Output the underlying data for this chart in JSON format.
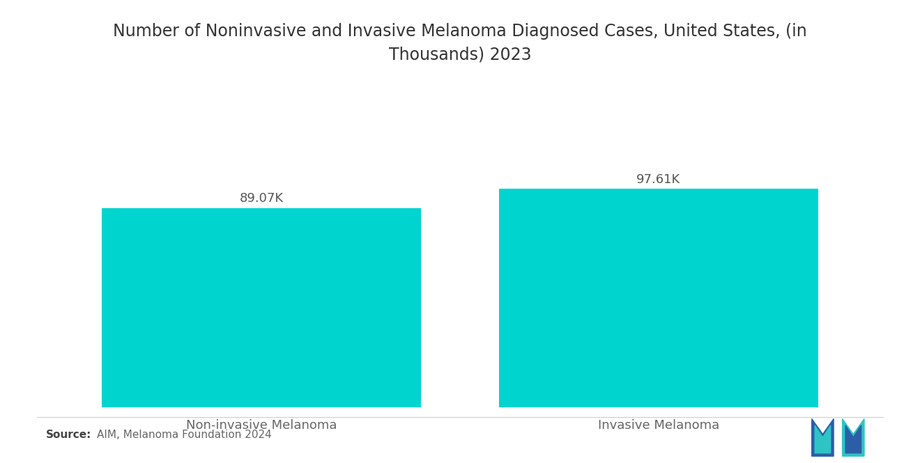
{
  "title": "Number of Noninvasive and Invasive Melanoma Diagnosed Cases, United States, (in\nThousands) 2023",
  "categories": [
    "Non-invasive Melanoma",
    "Invasive Melanoma"
  ],
  "values": [
    89.07,
    97.61
  ],
  "labels": [
    "89.07K",
    "97.61K"
  ],
  "bar_color": "#00D4CF",
  "background_color": "#ffffff",
  "title_fontsize": 17,
  "label_fontsize": 13,
  "category_fontsize": 13,
  "source_bold": "Source:",
  "source_normal": "  AIM, Melanoma Foundation 2024",
  "bar_positions": [
    0.27,
    0.73
  ],
  "bar_width": 0.37,
  "ylim": [
    0,
    120
  ]
}
